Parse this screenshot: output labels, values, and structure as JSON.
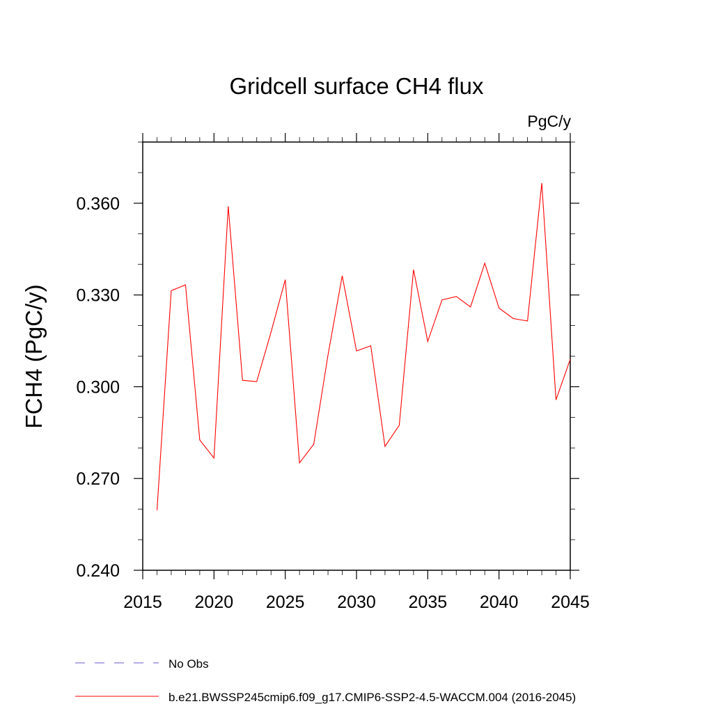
{
  "chart_data": {
    "type": "line",
    "title": "Gridcell surface CH4 flux",
    "units_label": "PgC/y",
    "ylabel": "FCH4  (PgC/y)",
    "xlabel": "",
    "xlim": [
      2015,
      2045
    ],
    "ylim": [
      0.24,
      0.38
    ],
    "x_ticks": [
      2015,
      2020,
      2025,
      2030,
      2035,
      2040,
      2045
    ],
    "y_ticks": [
      0.24,
      0.27,
      0.3,
      0.33,
      0.36
    ],
    "y_tick_labels": [
      "0.240",
      "0.270",
      "0.300",
      "0.330",
      "0.360"
    ],
    "grid": false,
    "series": [
      {
        "name": "b.e21.BWSSP245cmip6.f09_g17.CMIP6-SSP2-4.5-WACCM.004 (2016-2045)",
        "color": "#ff0000",
        "x": [
          2016,
          2017,
          2018,
          2019,
          2020,
          2021,
          2022,
          2023,
          2024,
          2025,
          2026,
          2027,
          2028,
          2029,
          2030,
          2031,
          2032,
          2033,
          2034,
          2035,
          2036,
          2037,
          2038,
          2039,
          2040,
          2041,
          2042,
          2043,
          2044,
          2045
        ],
        "values": [
          0.2596,
          0.3314,
          0.3333,
          0.2826,
          0.2767,
          0.359,
          0.3021,
          0.3017,
          0.3178,
          0.335,
          0.2751,
          0.2812,
          0.3104,
          0.3363,
          0.3117,
          0.3134,
          0.2805,
          0.2874,
          0.3383,
          0.3148,
          0.3284,
          0.3295,
          0.3261,
          0.3404,
          0.3257,
          0.3223,
          0.3215,
          0.3666,
          0.2957,
          0.309
        ]
      }
    ],
    "legend": {
      "placement": "bottom",
      "entries": [
        {
          "label": "No Obs",
          "color": "#6a5acd",
          "style": "dashed"
        },
        {
          "label": "b.e21.BWSSP245cmip6.f09_g17.CMIP6-SSP2-4.5-WACCM.004 (2016-2045)",
          "color": "#ff0000",
          "style": "solid"
        }
      ]
    }
  }
}
